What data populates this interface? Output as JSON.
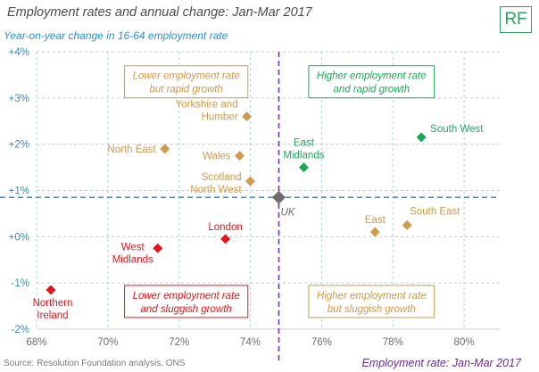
{
  "header": {
    "title": "Employment rates and annual change: Jan-Mar 2017",
    "logo": "RF"
  },
  "footer": {
    "source": "Source: Resolution Foundation analysis, ONS"
  },
  "colors": {
    "green": "#1fa65a",
    "orange": "#d19a4c",
    "red": "#e3161b",
    "grey": "#6d6d6d",
    "blue": "#2a8fd6",
    "purple": "#6a2c91",
    "grid": "#b9cce3"
  },
  "chart_data": {
    "type": "scatter",
    "title": "Employment rates and annual change: Jan-Mar 2017",
    "xlabel": "Employment rate: Jan-Mar 2017",
    "ylabel": "Year-on-year change in 16-64 employment rate",
    "xlim": [
      68,
      81
    ],
    "ylim": [
      -2,
      4
    ],
    "xticks": [
      68,
      70,
      72,
      74,
      76,
      78,
      80
    ],
    "xtick_labels": [
      "68%",
      "70%",
      "72%",
      "74%",
      "76%",
      "78%",
      "80%"
    ],
    "yticks": [
      -2,
      -1,
      0,
      1,
      2,
      3,
      4
    ],
    "ytick_labels": [
      "-2%",
      "-1%",
      "+0%",
      "+1%",
      "+2%",
      "+3%",
      "+4%"
    ],
    "reference_lines": {
      "x": 74.8,
      "y": 0.85
    },
    "points": [
      {
        "name": "South West",
        "x": 78.8,
        "y": 2.15,
        "group": "green",
        "label_pos": "right"
      },
      {
        "name": "East Midlands",
        "x": 75.5,
        "y": 1.5,
        "group": "green",
        "label_pos": "above"
      },
      {
        "name": "Yorkshire and Humber",
        "x": 73.9,
        "y": 2.6,
        "group": "orange",
        "label_pos": "left"
      },
      {
        "name": "North East",
        "x": 71.6,
        "y": 1.9,
        "group": "orange",
        "label_pos": "left"
      },
      {
        "name": "Wales",
        "x": 73.7,
        "y": 1.75,
        "group": "orange",
        "label_pos": "left"
      },
      {
        "name": "Scotland North West",
        "x": 74.0,
        "y": 1.2,
        "group": "orange",
        "label_pos": "left"
      },
      {
        "name": "East",
        "x": 77.5,
        "y": 0.1,
        "group": "orange",
        "label_pos": "above"
      },
      {
        "name": "South East",
        "x": 78.4,
        "y": 0.25,
        "group": "orange",
        "label_pos": "right-above"
      },
      {
        "name": "UK",
        "x": 74.8,
        "y": 0.85,
        "group": "grey",
        "label_pos": "below-right"
      },
      {
        "name": "London",
        "x": 73.3,
        "y": -0.05,
        "group": "red",
        "label_pos": "above"
      },
      {
        "name": "West Midlands",
        "x": 71.4,
        "y": -0.25,
        "group": "red",
        "label_pos": "below"
      },
      {
        "name": "Northern Ireland",
        "x": 68.4,
        "y": -1.15,
        "group": "red",
        "label_pos": "below"
      }
    ],
    "quadrant_labels": [
      {
        "text": "Lower employment rate but rapid growth",
        "group": "orange",
        "x": 72.2,
        "y": 3.35
      },
      {
        "text": "Higher employment rate and rapid growth",
        "group": "green",
        "x": 77.4,
        "y": 3.35
      },
      {
        "text": "Lower employment rate and sluggish growth",
        "group": "red",
        "x": 72.2,
        "y": -1.4
      },
      {
        "text": "Higher employment rate but sluggish growth",
        "group": "orange",
        "x": 77.4,
        "y": -1.4
      }
    ]
  }
}
